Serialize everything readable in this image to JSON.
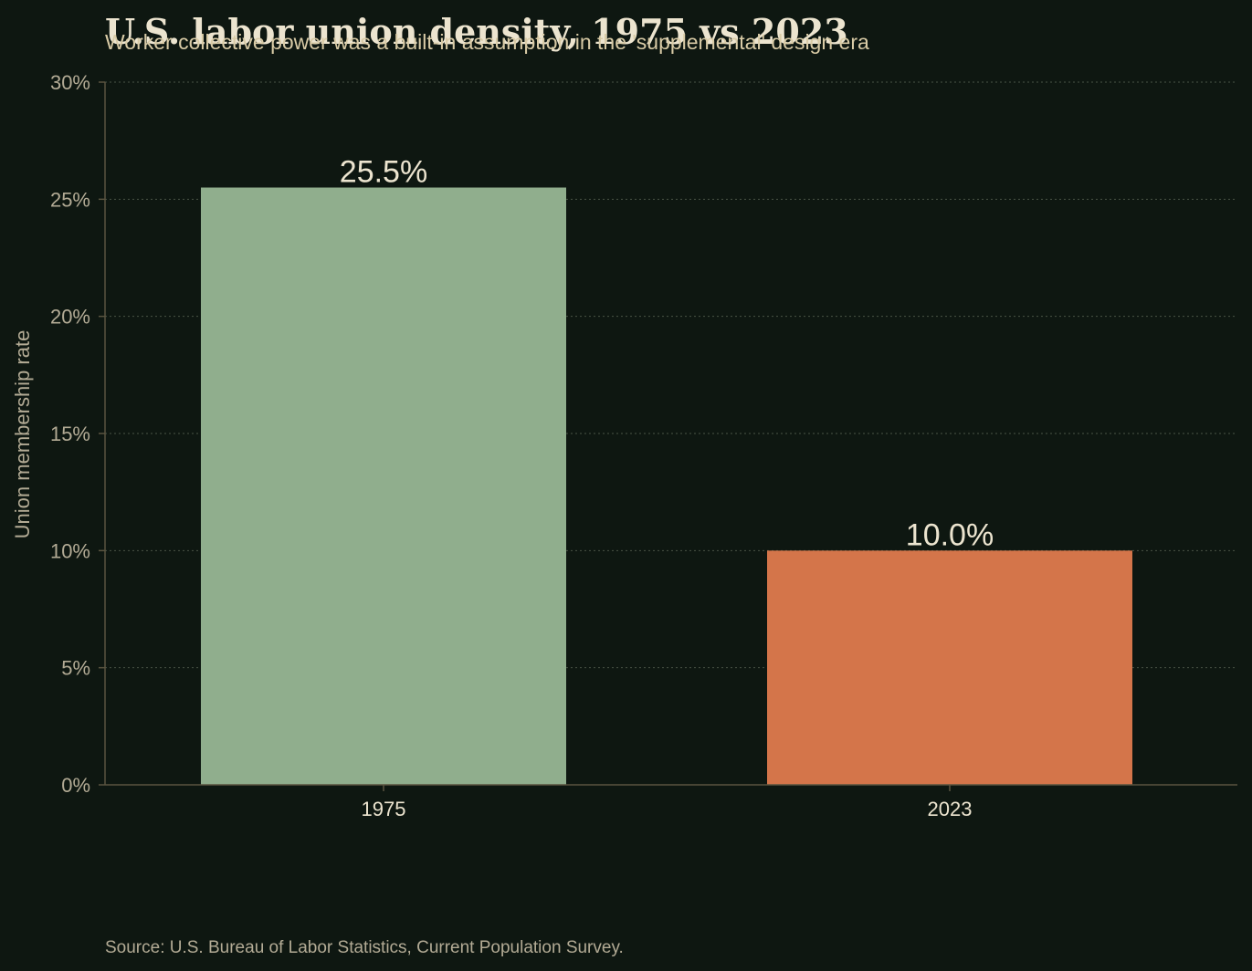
{
  "chart_data": {
    "type": "bar",
    "title": "U.S. labor union density, 1975 vs 2023",
    "subtitle": "Worker collective power was a built-in assumption in the 'supplemental' design era",
    "xlabel": "",
    "ylabel": "Union membership rate",
    "categories": [
      "1975",
      "2023"
    ],
    "values": [
      25.5,
      10.0
    ],
    "data_labels": [
      "25.5%",
      "10.0%"
    ],
    "bar_colors": [
      "#90ae8d",
      "#d4754a"
    ],
    "ylim": [
      0,
      30
    ],
    "yticks": [
      0,
      5,
      10,
      15,
      20,
      25,
      30
    ],
    "ytick_labels": [
      "0%",
      "5%",
      "10%",
      "15%",
      "20%",
      "25%",
      "30%"
    ],
    "grid": "horizontal-dotted",
    "legend": "none",
    "source": "Source: U.S. Bureau of Labor Statistics, Current Population Survey."
  }
}
